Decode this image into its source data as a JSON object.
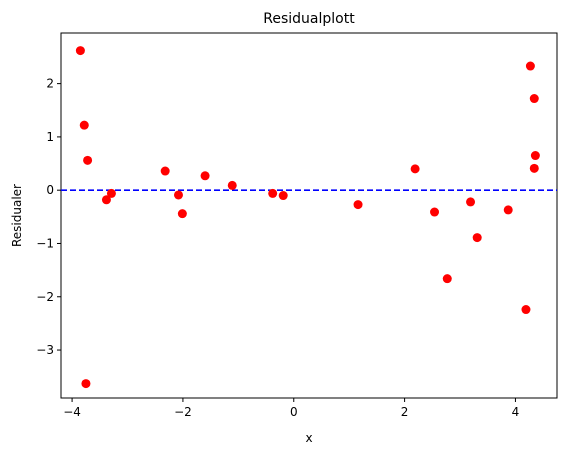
{
  "chart_data": {
    "type": "scatter",
    "title": "Residualplott",
    "xlabel": "x",
    "ylabel": "Residualer",
    "xlim": [
      -4.2,
      4.75
    ],
    "ylim": [
      -3.9,
      2.95
    ],
    "xticks": [
      -4,
      -2,
      0,
      2,
      4
    ],
    "yticks": [
      -3,
      -2,
      -1,
      0,
      1,
      2
    ],
    "grid": false,
    "series": [
      {
        "color": "#ff0000",
        "marker": "circle",
        "points": [
          {
            "x": -3.85,
            "y": 2.62
          },
          {
            "x": -3.78,
            "y": 1.22
          },
          {
            "x": -3.72,
            "y": 0.56
          },
          {
            "x": -3.75,
            "y": -3.63
          },
          {
            "x": -3.38,
            "y": -0.18
          },
          {
            "x": -3.29,
            "y": -0.06
          },
          {
            "x": -2.32,
            "y": 0.36
          },
          {
            "x": -2.08,
            "y": -0.09
          },
          {
            "x": -2.01,
            "y": -0.44
          },
          {
            "x": -1.6,
            "y": 0.27
          },
          {
            "x": -1.11,
            "y": 0.09
          },
          {
            "x": -0.38,
            "y": -0.06
          },
          {
            "x": -0.19,
            "y": -0.1
          },
          {
            "x": 1.16,
            "y": -0.27
          },
          {
            "x": 2.19,
            "y": 0.4
          },
          {
            "x": 2.54,
            "y": -0.41
          },
          {
            "x": 2.77,
            "y": -1.66
          },
          {
            "x": 3.19,
            "y": -0.22
          },
          {
            "x": 3.31,
            "y": -0.89
          },
          {
            "x": 3.87,
            "y": -0.37
          },
          {
            "x": 4.19,
            "y": -2.24
          },
          {
            "x": 4.27,
            "y": 2.33
          },
          {
            "x": 4.34,
            "y": 1.72
          },
          {
            "x": 4.36,
            "y": 0.65
          },
          {
            "x": 4.34,
            "y": 0.41
          }
        ]
      }
    ],
    "reference_line": {
      "y": 0,
      "color": "#0000ff",
      "style": "dashed"
    }
  }
}
